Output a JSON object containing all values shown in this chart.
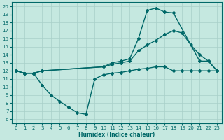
{
  "xlabel": "Humidex (Indice chaleur)",
  "bg_color": "#c5e8e0",
  "grid_color": "#a8cfc8",
  "line_color": "#006868",
  "xlim": [
    -0.5,
    23.5
  ],
  "ylim": [
    5.5,
    20.5
  ],
  "xticks": [
    0,
    1,
    2,
    3,
    4,
    5,
    6,
    7,
    8,
    9,
    10,
    11,
    12,
    13,
    14,
    15,
    16,
    17,
    18,
    19,
    20,
    21,
    22,
    23
  ],
  "yticks": [
    6,
    7,
    8,
    9,
    10,
    11,
    12,
    13,
    14,
    15,
    16,
    17,
    18,
    19,
    20
  ],
  "line_top_x": [
    0,
    1,
    2,
    3,
    10,
    11,
    12,
    13,
    14,
    15,
    16,
    17,
    18,
    21,
    22,
    23
  ],
  "line_top_y": [
    12,
    11.7,
    11.7,
    12,
    12.5,
    13.0,
    13.2,
    13.5,
    16.0,
    19.5,
    19.8,
    19.3,
    19.2,
    13.2,
    13.2,
    12.0
  ],
  "line_mid_x": [
    0,
    1,
    2,
    3,
    10,
    11,
    12,
    13,
    14,
    15,
    16,
    17,
    18,
    19,
    20,
    21,
    22,
    23
  ],
  "line_mid_y": [
    12,
    11.7,
    11.7,
    12,
    12.5,
    12.8,
    13.0,
    13.2,
    14.5,
    15.2,
    15.8,
    16.5,
    17.0,
    16.7,
    15.2,
    14.0,
    13.2,
    12.0
  ],
  "line_bot_x": [
    0,
    1,
    2,
    3,
    4,
    5,
    6,
    7,
    8,
    9,
    10,
    11,
    12,
    13,
    14,
    15,
    16,
    17,
    18,
    19,
    20,
    21,
    22,
    23
  ],
  "line_bot_y": [
    12,
    11.7,
    11.7,
    10.2,
    9.0,
    8.2,
    7.5,
    6.8,
    6.6,
    11.0,
    11.5,
    11.7,
    11.8,
    12.0,
    12.2,
    12.3,
    12.5,
    12.5,
    12.0,
    12.0,
    12.0,
    12.0,
    12.0,
    12.0
  ],
  "marker": "D",
  "markersize": 2.0,
  "linewidth": 1.0
}
